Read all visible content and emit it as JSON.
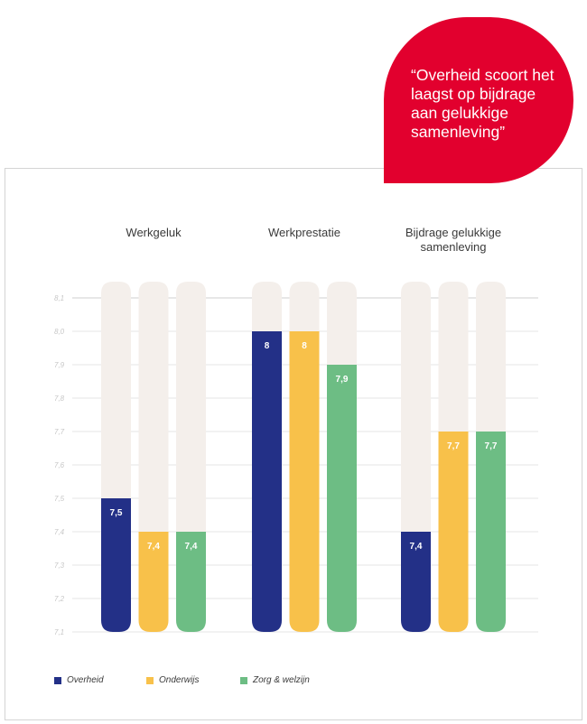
{
  "quote": "“Overheid scoort het laagst op bijdrage aan gelukkige samenleving”",
  "colors": {
    "bubble": "#e2002e",
    "track": "#f4efeb",
    "grid": "#e4e4e4",
    "Overheid": "#233087",
    "Onderwijs": "#f8c14a",
    "Zorg & welzijn": "#6dbd84"
  },
  "chart_data": {
    "type": "bar",
    "categories": [
      "Werkgeluk",
      "Werkprestatie",
      "Bijdrage gelukkige samenleving"
    ],
    "category_lines": [
      [
        "Werkgeluk"
      ],
      [
        "Werkprestatie"
      ],
      [
        "Bijdrage gelukkige",
        "samenleving"
      ]
    ],
    "series": [
      {
        "name": "Overheid",
        "values": [
          7.5,
          8.0,
          7.4
        ],
        "labels": [
          "7,5",
          "8",
          "7,4"
        ]
      },
      {
        "name": "Onderwijs",
        "values": [
          7.4,
          8.0,
          7.7
        ],
        "labels": [
          "7,4",
          "8",
          "7,7"
        ]
      },
      {
        "name": "Zorg & welzijn",
        "values": [
          7.4,
          7.9,
          7.7
        ],
        "labels": [
          "7,4",
          "7,9",
          "7,7"
        ]
      }
    ],
    "ylim": [
      7.1,
      8.1
    ],
    "yticks": [
      {
        "value": 8.1,
        "label": "8,1"
      },
      {
        "value": 8.0,
        "label": "8,0"
      },
      {
        "value": 7.9,
        "label": "7,9"
      },
      {
        "value": 7.8,
        "label": "7,8"
      },
      {
        "value": 7.7,
        "label": "7,7"
      },
      {
        "value": 7.6,
        "label": "7,6"
      },
      {
        "value": 7.5,
        "label": "7,5"
      },
      {
        "value": 7.4,
        "label": "7,4"
      },
      {
        "value": 7.3,
        "label": "7,3"
      },
      {
        "value": 7.2,
        "label": "7,2"
      },
      {
        "value": 7.1,
        "label": "7,1"
      }
    ],
    "grid": true,
    "legend_position": "bottom-left"
  }
}
